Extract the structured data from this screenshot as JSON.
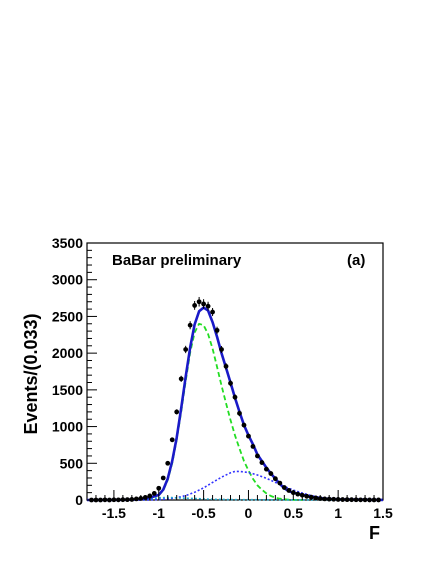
{
  "chart_data": {
    "type": "line",
    "annotations": [
      "BaBar preliminary",
      "(a)"
    ],
    "xlabel": "F",
    "ylabel": "Events/(0.033)",
    "xlim": [
      -1.8,
      1.5
    ],
    "ylim": [
      0,
      3500
    ],
    "x_ticks": [
      "-1.5",
      "-1",
      "-0.5",
      "0",
      "0.5",
      "1",
      "1.5"
    ],
    "x_tick_values": [
      -1.5,
      -1.0,
      -0.5,
      0.0,
      0.5,
      1.0,
      1.5
    ],
    "y_ticks": [
      "0",
      "500",
      "1000",
      "1500",
      "2000",
      "2500",
      "3000",
      "3500"
    ],
    "y_tick_values": [
      0,
      500,
      1000,
      1500,
      2000,
      2500,
      3000,
      3500
    ],
    "grid": false,
    "colors": {
      "total": "#1a1ac8",
      "component_1": "#22dd22",
      "component_2": "#3333ff",
      "component_3": "#22aacc",
      "points": "#000000"
    },
    "series": [
      {
        "style": "solid",
        "color_key": "total",
        "x": [
          -1.8,
          -1.6,
          -1.4,
          -1.2,
          -1.1,
          -1.0,
          -0.95,
          -0.9,
          -0.85,
          -0.8,
          -0.75,
          -0.7,
          -0.65,
          -0.6,
          -0.55,
          -0.5,
          -0.45,
          -0.4,
          -0.35,
          -0.3,
          -0.25,
          -0.2,
          -0.15,
          -0.1,
          -0.05,
          0.0,
          0.05,
          0.1,
          0.15,
          0.2,
          0.25,
          0.3,
          0.35,
          0.4,
          0.45,
          0.5,
          0.6,
          0.7,
          0.8,
          0.9,
          1.0,
          1.2,
          1.5
        ],
        "y": [
          0,
          0,
          3,
          10,
          30,
          70,
          140,
          290,
          530,
          850,
          1250,
          1680,
          2080,
          2390,
          2570,
          2620,
          2580,
          2420,
          2220,
          2000,
          1800,
          1600,
          1390,
          1200,
          1020,
          880,
          760,
          620,
          530,
          440,
          360,
          290,
          220,
          160,
          120,
          100,
          70,
          40,
          25,
          15,
          10,
          5,
          2
        ]
      },
      {
        "style": "dashed",
        "color_key": "component_1",
        "x": [
          -1.8,
          -1.6,
          -1.4,
          -1.2,
          -1.1,
          -1.0,
          -0.95,
          -0.9,
          -0.85,
          -0.8,
          -0.75,
          -0.7,
          -0.65,
          -0.6,
          -0.55,
          -0.5,
          -0.45,
          -0.4,
          -0.35,
          -0.3,
          -0.25,
          -0.2,
          -0.15,
          -0.1,
          -0.05,
          0.0,
          0.05,
          0.1,
          0.15,
          0.2,
          0.25,
          0.3,
          0.35,
          0.4,
          0.45,
          0.5,
          0.6
        ],
        "y": [
          0,
          0,
          3,
          10,
          28,
          65,
          130,
          270,
          500,
          820,
          1200,
          1620,
          2010,
          2280,
          2400,
          2380,
          2260,
          2060,
          1810,
          1560,
          1320,
          1090,
          880,
          700,
          530,
          400,
          290,
          200,
          140,
          90,
          55,
          32,
          18,
          9,
          4,
          2,
          0
        ]
      },
      {
        "style": "dotted",
        "color_key": "component_2",
        "x": [
          -1.8,
          -1.4,
          -1.1,
          -1.0,
          -0.9,
          -0.8,
          -0.7,
          -0.6,
          -0.5,
          -0.4,
          -0.3,
          -0.2,
          -0.15,
          -0.1,
          0.0,
          0.1,
          0.2,
          0.3,
          0.4,
          0.5,
          0.6,
          0.7,
          0.8,
          0.9,
          1.0,
          1.2,
          1.5
        ],
        "y": [
          0,
          0,
          2,
          6,
          15,
          32,
          60,
          105,
          165,
          240,
          310,
          370,
          390,
          390,
          375,
          340,
          295,
          240,
          185,
          135,
          95,
          60,
          35,
          20,
          10,
          3,
          0
        ]
      },
      {
        "style": "dotted",
        "color_key": "component_3",
        "x": [
          -1.8,
          -1.4,
          -1.2,
          -1.1,
          -1.0,
          -0.9,
          -0.8,
          -0.7,
          -0.6,
          -0.5,
          -0.4,
          -0.2,
          0.0,
          0.2,
          0.4,
          0.6,
          0.8,
          1.0,
          1.2,
          1.5
        ],
        "y": [
          0,
          0,
          6,
          15,
          30,
          35,
          30,
          25,
          20,
          15,
          10,
          6,
          4,
          3,
          2,
          1,
          1,
          0,
          0,
          0
        ]
      }
    ],
    "points": {
      "color_key": "points",
      "x": [
        -1.75,
        -1.7,
        -1.65,
        -1.6,
        -1.55,
        -1.5,
        -1.45,
        -1.4,
        -1.35,
        -1.3,
        -1.25,
        -1.2,
        -1.15,
        -1.1,
        -1.05,
        -1.0,
        -0.95,
        -0.9,
        -0.85,
        -0.8,
        -0.75,
        -0.7,
        -0.65,
        -0.6,
        -0.55,
        -0.5,
        -0.45,
        -0.4,
        -0.35,
        -0.3,
        -0.25,
        -0.2,
        -0.15,
        -0.1,
        -0.05,
        0.0,
        0.05,
        0.1,
        0.15,
        0.2,
        0.25,
        0.3,
        0.35,
        0.4,
        0.45,
        0.5,
        0.55,
        0.6,
        0.65,
        0.7,
        0.75,
        0.8,
        0.85,
        0.9,
        0.95,
        1.0,
        1.05,
        1.1,
        1.15,
        1.2,
        1.25,
        1.3,
        1.35,
        1.4,
        1.45
      ],
      "y": [
        0,
        0,
        0,
        2,
        0,
        3,
        2,
        4,
        5,
        8,
        15,
        22,
        35,
        55,
        90,
        160,
        300,
        500,
        820,
        1200,
        1650,
        2050,
        2380,
        2650,
        2700,
        2670,
        2640,
        2560,
        2310,
        2050,
        1820,
        1590,
        1400,
        1180,
        1020,
        870,
        730,
        600,
        510,
        420,
        360,
        290,
        230,
        170,
        130,
        100,
        80,
        65,
        50,
        38,
        28,
        20,
        15,
        12,
        10,
        8,
        6,
        5,
        4,
        3,
        2,
        2,
        1,
        1,
        1
      ],
      "err": [
        5,
        5,
        5,
        5,
        5,
        5,
        5,
        5,
        5,
        6,
        6,
        7,
        9,
        10,
        12,
        15,
        20,
        25,
        30,
        35,
        42,
        50,
        55,
        60,
        65,
        65,
        60,
        55,
        50,
        48,
        45,
        42,
        40,
        38,
        35,
        32,
        30,
        28,
        25,
        22,
        20,
        18,
        16,
        14,
        12,
        10,
        9,
        8,
        8,
        7,
        6,
        6,
        5,
        5,
        5,
        5,
        5,
        5,
        5,
        5,
        5,
        5,
        5,
        5,
        5
      ]
    }
  }
}
